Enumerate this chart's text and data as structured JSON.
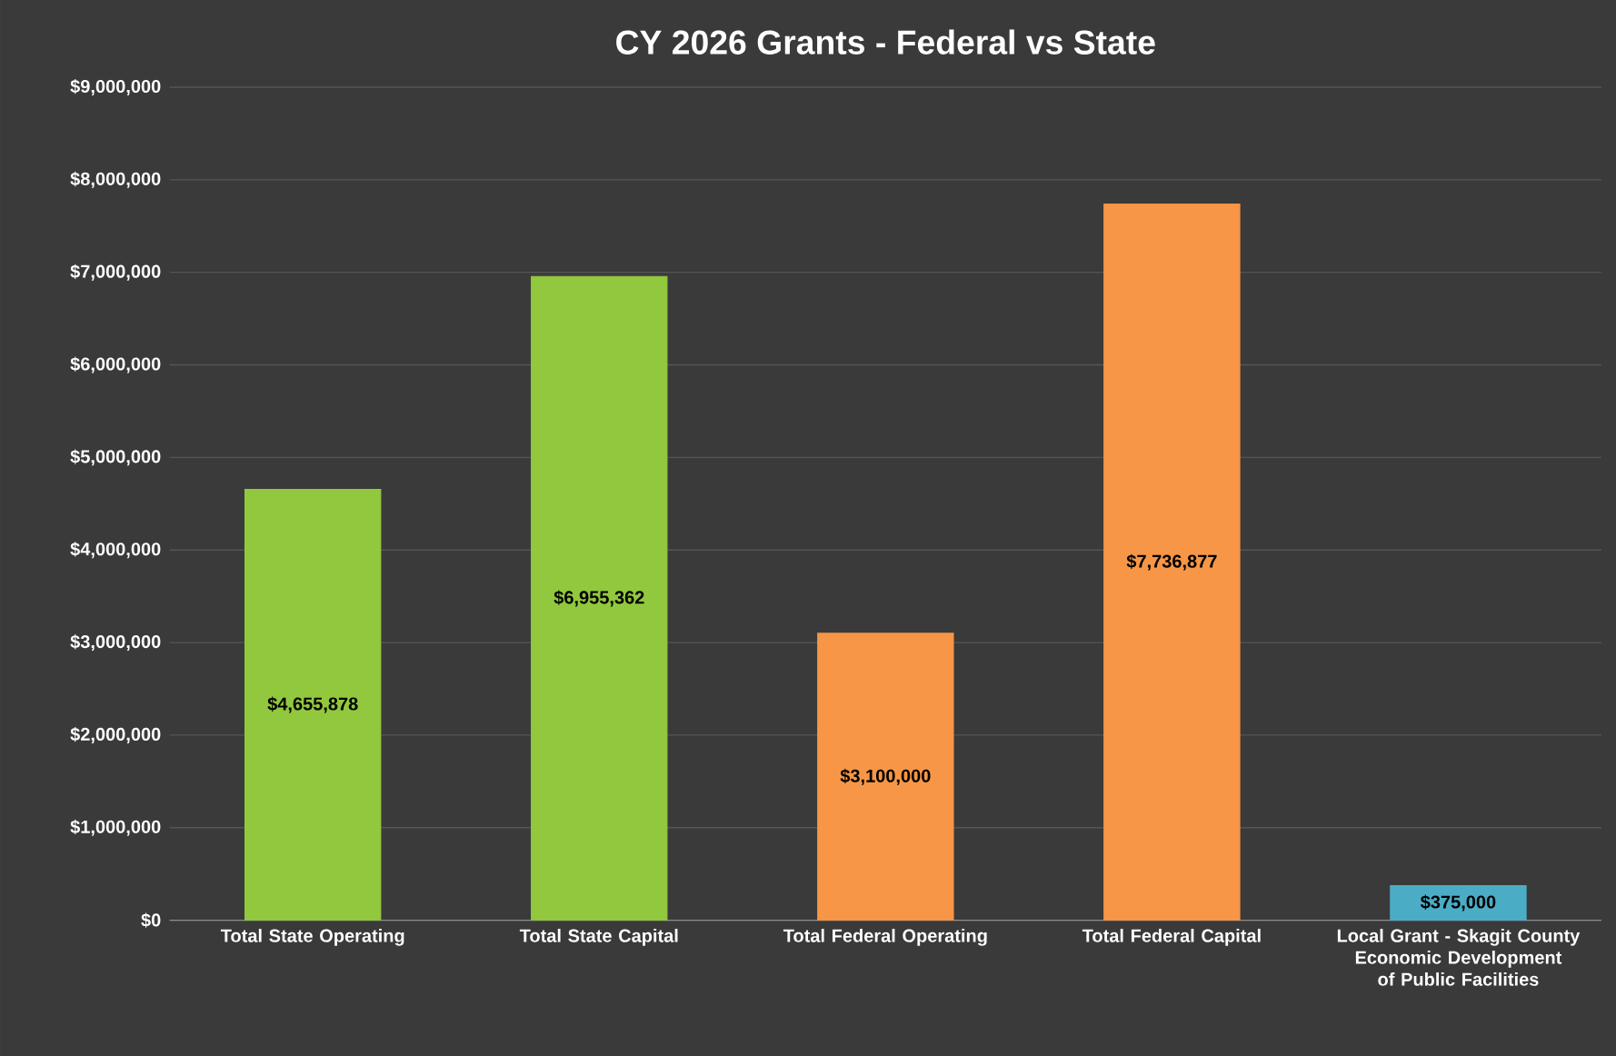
{
  "chart_data": {
    "type": "bar",
    "title": "CY 2026 Grants - Federal vs State",
    "categories": [
      "Total State Operating",
      "Total State Capital",
      "Total Federal Operating",
      "Total Federal Capital",
      "Local Grant - Skagit County Economic Development of Public Facilities"
    ],
    "values": [
      4655878,
      6955362,
      3100000,
      7736877,
      375000
    ],
    "colors": [
      "#92c83e",
      "#92c83e",
      "#f79646",
      "#f79646",
      "#4bacc6"
    ],
    "value_labels": [
      "$4,655,878",
      "$6,955,362",
      "$3,100,000",
      "$7,736,877",
      "$375,000"
    ],
    "ylim": [
      0,
      9000000
    ],
    "yticks": [
      {
        "value": 0,
        "label": "$0"
      },
      {
        "value": 1000000,
        "label": "$1,000,000"
      },
      {
        "value": 2000000,
        "label": "$2,000,000"
      },
      {
        "value": 3000000,
        "label": "$3,000,000"
      },
      {
        "value": 4000000,
        "label": "$4,000,000"
      },
      {
        "value": 5000000,
        "label": "$5,000,000"
      },
      {
        "value": 6000000,
        "label": "$6,000,000"
      },
      {
        "value": 7000000,
        "label": "$7,000,000"
      },
      {
        "value": 8000000,
        "label": "$8,000,000"
      },
      {
        "value": 9000000,
        "label": "$9,000,000"
      }
    ],
    "grid": "y"
  }
}
